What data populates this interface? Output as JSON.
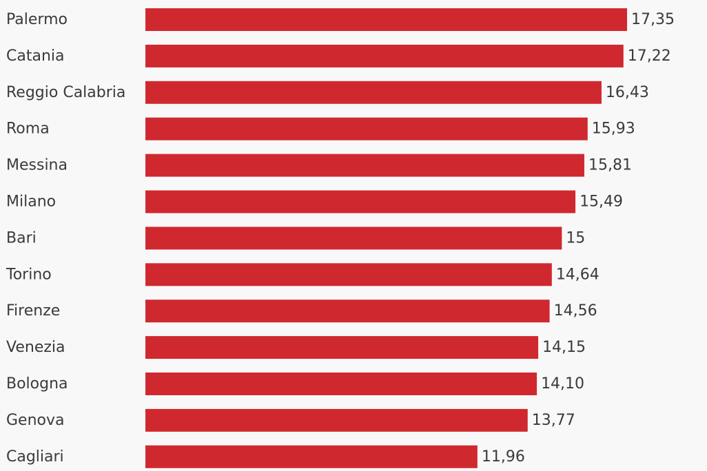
{
  "chart_data": {
    "type": "bar",
    "orientation": "horizontal",
    "categories": [
      "Palermo",
      "Catania",
      "Reggio Calabria",
      "Roma",
      "Messina",
      "Milano",
      "Bari",
      "Torino",
      "Firenze",
      "Venezia",
      "Bologna",
      "Genova",
      "Cagliari"
    ],
    "values": [
      17.35,
      17.22,
      16.43,
      15.93,
      15.81,
      15.49,
      15,
      14.64,
      14.56,
      14.15,
      14.1,
      13.77,
      11.96
    ],
    "value_labels": [
      "17,35",
      "17,22",
      "16,43",
      "15,93",
      "15,81",
      "15,49",
      "15",
      "14,64",
      "14,56",
      "14,15",
      "14,10",
      "13,77",
      "11,96"
    ],
    "xlim": [
      0,
      17.35
    ],
    "bar_color": "#d0282f",
    "grid": false,
    "legend": "none"
  }
}
